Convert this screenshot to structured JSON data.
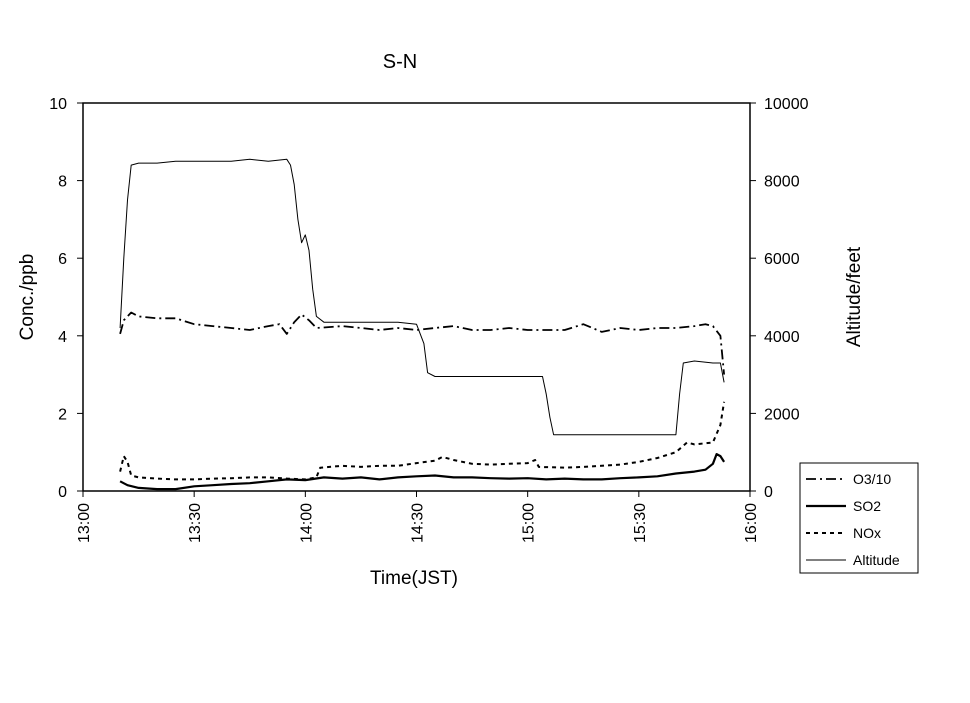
{
  "chart_data": {
    "type": "line",
    "title": "S-N",
    "xlabel": "Time(JST)",
    "ylabel_left": "Conc./ppb",
    "ylabel_right": "Altitude/feet",
    "xlim": [
      "13:00",
      "16:00"
    ],
    "ylim_left": [
      0,
      10
    ],
    "ylim_right": [
      0,
      10000
    ],
    "x_ticks": [
      "13:00",
      "13:30",
      "14:00",
      "14:30",
      "15:00",
      "15:30",
      "16:00"
    ],
    "y_ticks_left": [
      "0",
      "2",
      "4",
      "6",
      "8",
      "10"
    ],
    "y_ticks_right": [
      "0",
      "2000",
      "4000",
      "6000",
      "8000",
      "10000"
    ],
    "grid": false,
    "legend_position": "bottom-right",
    "series": [
      {
        "name": "O3/10",
        "axis": "left",
        "style": "dash-dot",
        "color": "#000000",
        "points": [
          [
            "13:10",
            4.05
          ],
          [
            "13:11",
            4.4
          ],
          [
            "13:13",
            4.6
          ],
          [
            "13:15",
            4.5
          ],
          [
            "13:20",
            4.45
          ],
          [
            "13:25",
            4.45
          ],
          [
            "13:30",
            4.3
          ],
          [
            "13:35",
            4.25
          ],
          [
            "13:40",
            4.2
          ],
          [
            "13:45",
            4.15
          ],
          [
            "13:50",
            4.25
          ],
          [
            "13:53",
            4.3
          ],
          [
            "13:55",
            4.05
          ],
          [
            "13:57",
            4.35
          ],
          [
            "13:59",
            4.55
          ],
          [
            "14:01",
            4.4
          ],
          [
            "14:03",
            4.2
          ],
          [
            "14:10",
            4.25
          ],
          [
            "14:15",
            4.2
          ],
          [
            "14:20",
            4.15
          ],
          [
            "14:25",
            4.2
          ],
          [
            "14:30",
            4.15
          ],
          [
            "14:35",
            4.2
          ],
          [
            "14:40",
            4.25
          ],
          [
            "14:45",
            4.15
          ],
          [
            "14:50",
            4.15
          ],
          [
            "14:55",
            4.2
          ],
          [
            "15:00",
            4.15
          ],
          [
            "15:05",
            4.15
          ],
          [
            "15:10",
            4.15
          ],
          [
            "15:15",
            4.3
          ],
          [
            "15:20",
            4.1
          ],
          [
            "15:25",
            4.2
          ],
          [
            "15:30",
            4.15
          ],
          [
            "15:35",
            4.2
          ],
          [
            "15:40",
            4.2
          ],
          [
            "15:45",
            4.25
          ],
          [
            "15:48",
            4.3
          ],
          [
            "15:50",
            4.25
          ],
          [
            "15:52",
            4.0
          ],
          [
            "15:53",
            3.0
          ]
        ]
      },
      {
        "name": "SO2",
        "axis": "left",
        "style": "solid-thick",
        "color": "#000000",
        "points": [
          [
            "13:10",
            0.25
          ],
          [
            "13:12",
            0.15
          ],
          [
            "13:15",
            0.08
          ],
          [
            "13:20",
            0.05
          ],
          [
            "13:25",
            0.05
          ],
          [
            "13:30",
            0.12
          ],
          [
            "13:35",
            0.15
          ],
          [
            "13:40",
            0.18
          ],
          [
            "13:45",
            0.2
          ],
          [
            "13:50",
            0.25
          ],
          [
            "13:55",
            0.3
          ],
          [
            "14:00",
            0.28
          ],
          [
            "14:05",
            0.35
          ],
          [
            "14:10",
            0.32
          ],
          [
            "14:15",
            0.35
          ],
          [
            "14:20",
            0.3
          ],
          [
            "14:25",
            0.35
          ],
          [
            "14:30",
            0.38
          ],
          [
            "14:35",
            0.4
          ],
          [
            "14:40",
            0.35
          ],
          [
            "14:45",
            0.35
          ],
          [
            "14:50",
            0.33
          ],
          [
            "14:55",
            0.32
          ],
          [
            "15:00",
            0.33
          ],
          [
            "15:05",
            0.3
          ],
          [
            "15:10",
            0.32
          ],
          [
            "15:15",
            0.3
          ],
          [
            "15:20",
            0.3
          ],
          [
            "15:25",
            0.33
          ],
          [
            "15:30",
            0.35
          ],
          [
            "15:35",
            0.38
          ],
          [
            "15:40",
            0.45
          ],
          [
            "15:45",
            0.5
          ],
          [
            "15:48",
            0.55
          ],
          [
            "15:50",
            0.7
          ],
          [
            "15:51",
            0.95
          ],
          [
            "15:52",
            0.9
          ],
          [
            "15:53",
            0.75
          ]
        ]
      },
      {
        "name": "NOx",
        "axis": "left",
        "style": "dotted",
        "color": "#000000",
        "points": [
          [
            "13:10",
            0.5
          ],
          [
            "13:11",
            0.9
          ],
          [
            "13:12",
            0.75
          ],
          [
            "13:13",
            0.4
          ],
          [
            "13:15",
            0.35
          ],
          [
            "13:20",
            0.32
          ],
          [
            "13:25",
            0.3
          ],
          [
            "13:30",
            0.3
          ],
          [
            "13:35",
            0.32
          ],
          [
            "13:40",
            0.33
          ],
          [
            "13:45",
            0.35
          ],
          [
            "13:50",
            0.35
          ],
          [
            "13:55",
            0.32
          ],
          [
            "14:00",
            0.3
          ],
          [
            "14:03",
            0.35
          ],
          [
            "14:04",
            0.6
          ],
          [
            "14:10",
            0.65
          ],
          [
            "14:15",
            0.62
          ],
          [
            "14:20",
            0.65
          ],
          [
            "14:25",
            0.65
          ],
          [
            "14:30",
            0.72
          ],
          [
            "14:35",
            0.78
          ],
          [
            "14:37",
            0.88
          ],
          [
            "14:40",
            0.8
          ],
          [
            "14:45",
            0.7
          ],
          [
            "14:50",
            0.68
          ],
          [
            "14:55",
            0.7
          ],
          [
            "15:00",
            0.72
          ],
          [
            "15:02",
            0.8
          ],
          [
            "15:03",
            0.62
          ],
          [
            "15:10",
            0.6
          ],
          [
            "15:15",
            0.62
          ],
          [
            "15:20",
            0.65
          ],
          [
            "15:25",
            0.68
          ],
          [
            "15:30",
            0.75
          ],
          [
            "15:35",
            0.85
          ],
          [
            "15:40",
            1.0
          ],
          [
            "15:43",
            1.25
          ],
          [
            "15:45",
            1.2
          ],
          [
            "15:50",
            1.25
          ],
          [
            "15:52",
            1.7
          ],
          [
            "15:53",
            2.3
          ]
        ]
      },
      {
        "name": "Altitude",
        "axis": "right",
        "style": "solid-thin",
        "color": "#000000",
        "points": [
          [
            "13:10",
            4200
          ],
          [
            "13:11",
            6000
          ],
          [
            "13:12",
            7500
          ],
          [
            "13:13",
            8400
          ],
          [
            "13:15",
            8450
          ],
          [
            "13:20",
            8450
          ],
          [
            "13:25",
            8500
          ],
          [
            "13:30",
            8500
          ],
          [
            "13:35",
            8500
          ],
          [
            "13:40",
            8500
          ],
          [
            "13:45",
            8550
          ],
          [
            "13:50",
            8500
          ],
          [
            "13:55",
            8550
          ],
          [
            "13:56",
            8400
          ],
          [
            "13:57",
            7900
          ],
          [
            "13:58",
            7000
          ],
          [
            "13:59",
            6400
          ],
          [
            "14:00",
            6600
          ],
          [
            "14:01",
            6200
          ],
          [
            "14:02",
            5200
          ],
          [
            "14:03",
            4500
          ],
          [
            "14:05",
            4350
          ],
          [
            "14:10",
            4350
          ],
          [
            "14:15",
            4350
          ],
          [
            "14:20",
            4350
          ],
          [
            "14:25",
            4350
          ],
          [
            "14:30",
            4300
          ],
          [
            "14:32",
            3800
          ],
          [
            "14:33",
            3050
          ],
          [
            "14:35",
            2950
          ],
          [
            "14:40",
            2950
          ],
          [
            "14:45",
            2950
          ],
          [
            "14:50",
            2950
          ],
          [
            "14:55",
            2950
          ],
          [
            "15:00",
            2950
          ],
          [
            "15:04",
            2950
          ],
          [
            "15:05",
            2500
          ],
          [
            "15:06",
            1900
          ],
          [
            "15:07",
            1450
          ],
          [
            "15:10",
            1450
          ],
          [
            "15:15",
            1450
          ],
          [
            "15:20",
            1450
          ],
          [
            "15:25",
            1450
          ],
          [
            "15:30",
            1450
          ],
          [
            "15:35",
            1450
          ],
          [
            "15:40",
            1450
          ],
          [
            "15:41",
            2500
          ],
          [
            "15:42",
            3300
          ],
          [
            "15:45",
            3350
          ],
          [
            "15:50",
            3300
          ],
          [
            "15:52",
            3300
          ],
          [
            "15:53",
            2800
          ]
        ]
      }
    ]
  }
}
